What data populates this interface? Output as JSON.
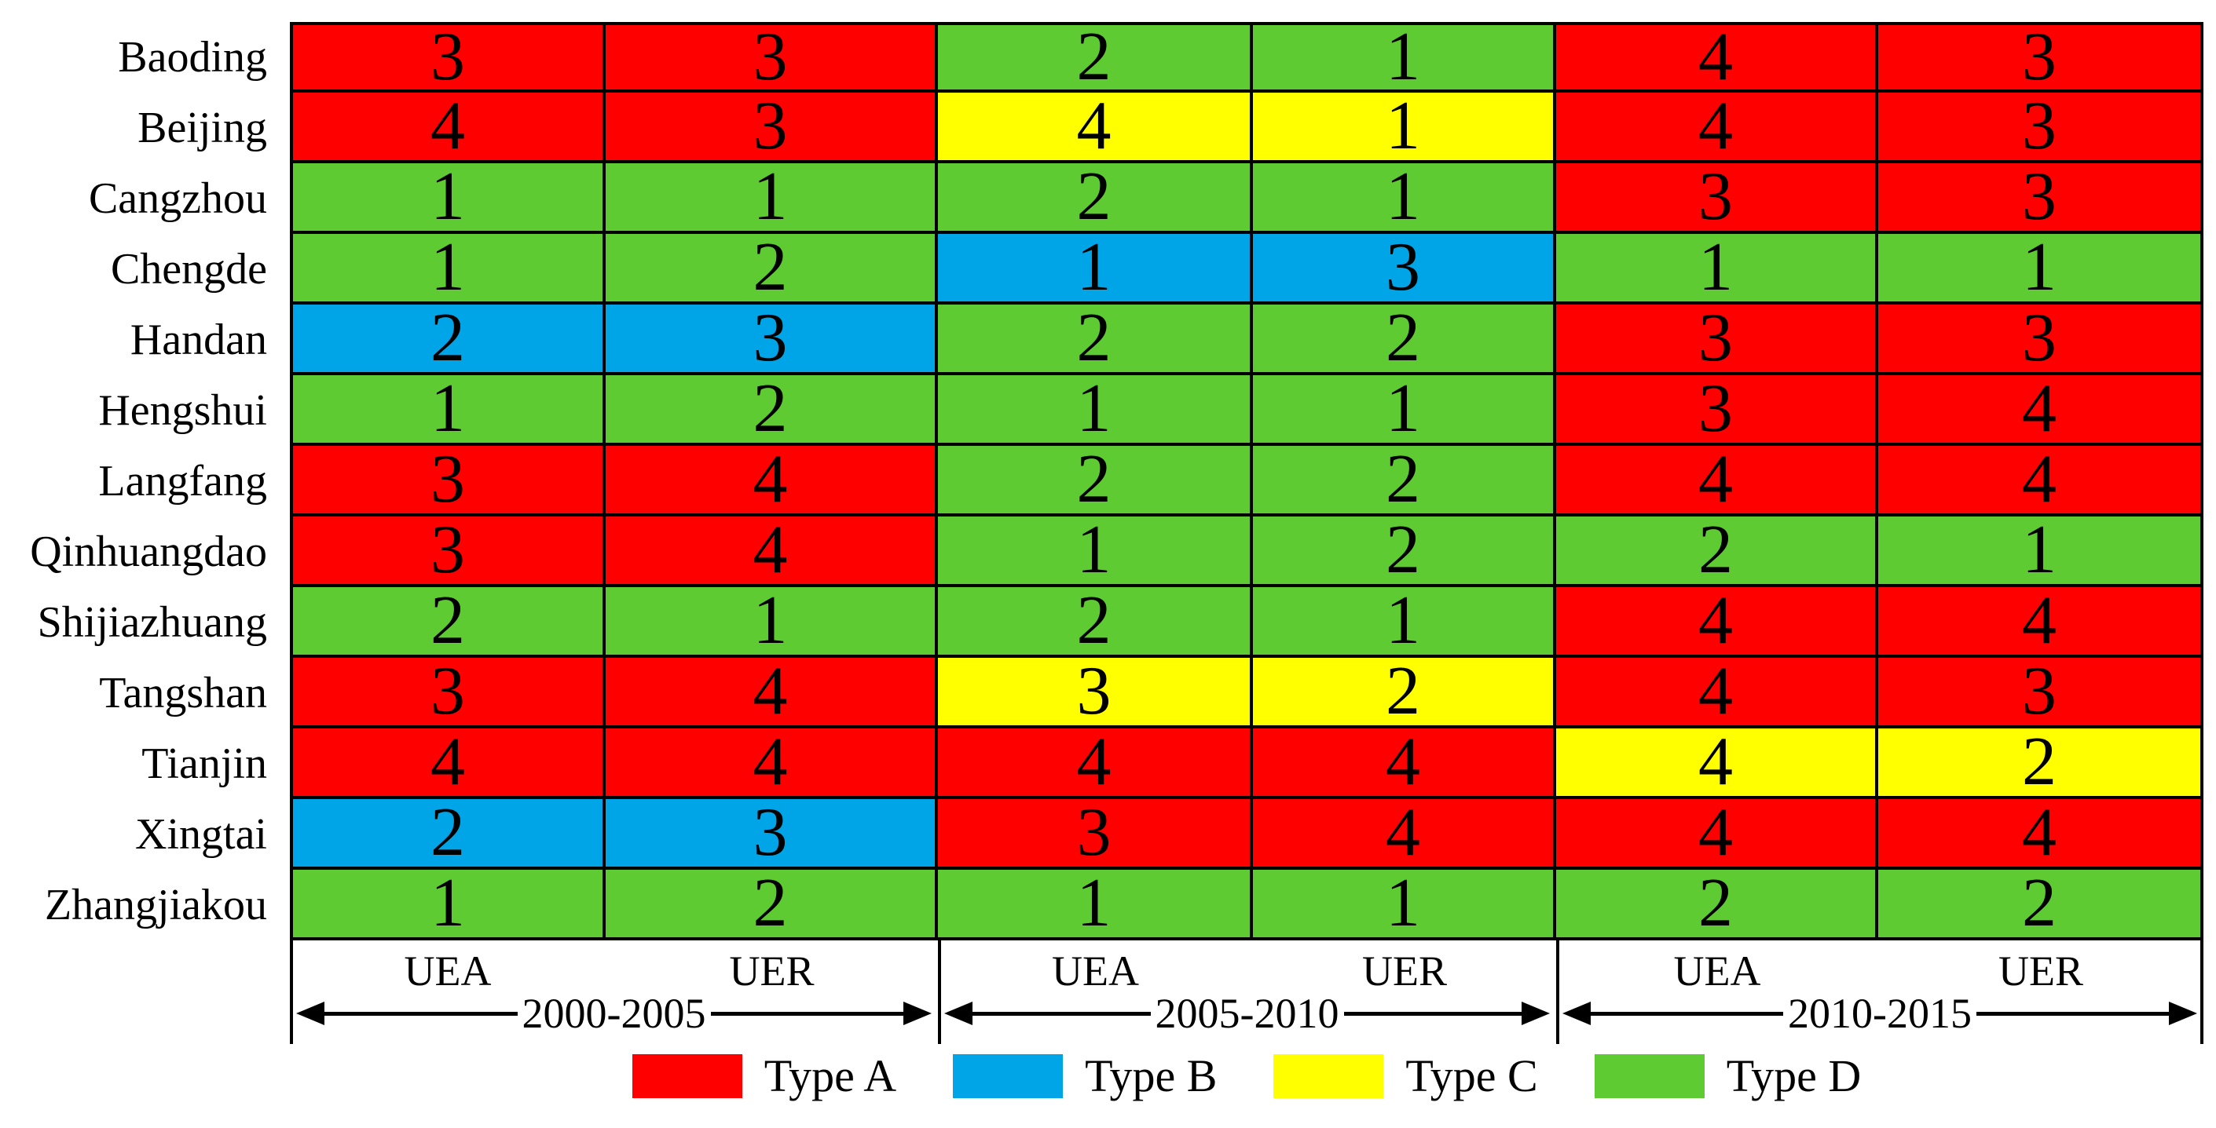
{
  "colors": {
    "A": "#FF0000",
    "B": "#00A5E8",
    "C": "#FFFF00",
    "D": "#5FCB33",
    "border": "#000000"
  },
  "table": {
    "row_labels": [
      "Baoding",
      "Beijing",
      "Cangzhou",
      "Chengde",
      "Handan",
      "Hengshui",
      "Langfang",
      "Qinhuangdao",
      "Shijiazhuang",
      "Tangshan",
      "Tianjin",
      "Xingtai",
      "Zhangjiakou"
    ],
    "column_groups": [
      {
        "period": "2000-2005",
        "columns": [
          "UEA",
          "UER"
        ]
      },
      {
        "period": "2005-2010",
        "columns": [
          "UEA",
          "UER"
        ]
      },
      {
        "period": "2010-2015",
        "columns": [
          "UEA",
          "UER"
        ]
      }
    ],
    "cells": [
      [
        {
          "value": "3",
          "type": "A"
        },
        {
          "value": "3",
          "type": "A"
        },
        {
          "value": "2",
          "type": "D"
        },
        {
          "value": "1",
          "type": "D"
        },
        {
          "value": "4",
          "type": "A"
        },
        {
          "value": "3",
          "type": "A"
        }
      ],
      [
        {
          "value": "4",
          "type": "A"
        },
        {
          "value": "3",
          "type": "A"
        },
        {
          "value": "4",
          "type": "C"
        },
        {
          "value": "1",
          "type": "C"
        },
        {
          "value": "4",
          "type": "A"
        },
        {
          "value": "3",
          "type": "A"
        }
      ],
      [
        {
          "value": "1",
          "type": "D"
        },
        {
          "value": "1",
          "type": "D"
        },
        {
          "value": "2",
          "type": "D"
        },
        {
          "value": "1",
          "type": "D"
        },
        {
          "value": "3",
          "type": "A"
        },
        {
          "value": "3",
          "type": "A"
        }
      ],
      [
        {
          "value": "1",
          "type": "D"
        },
        {
          "value": "2",
          "type": "D"
        },
        {
          "value": "1",
          "type": "B"
        },
        {
          "value": "3",
          "type": "B"
        },
        {
          "value": "1",
          "type": "D"
        },
        {
          "value": "1",
          "type": "D"
        }
      ],
      [
        {
          "value": "2",
          "type": "B"
        },
        {
          "value": "3",
          "type": "B"
        },
        {
          "value": "2",
          "type": "D"
        },
        {
          "value": "2",
          "type": "D"
        },
        {
          "value": "3",
          "type": "A"
        },
        {
          "value": "3",
          "type": "A"
        }
      ],
      [
        {
          "value": "1",
          "type": "D"
        },
        {
          "value": "2",
          "type": "D"
        },
        {
          "value": "1",
          "type": "D"
        },
        {
          "value": "1",
          "type": "D"
        },
        {
          "value": "3",
          "type": "A"
        },
        {
          "value": "4",
          "type": "A"
        }
      ],
      [
        {
          "value": "3",
          "type": "A"
        },
        {
          "value": "4",
          "type": "A"
        },
        {
          "value": "2",
          "type": "D"
        },
        {
          "value": "2",
          "type": "D"
        },
        {
          "value": "4",
          "type": "A"
        },
        {
          "value": "4",
          "type": "A"
        }
      ],
      [
        {
          "value": "3",
          "type": "A"
        },
        {
          "value": "4",
          "type": "A"
        },
        {
          "value": "1",
          "type": "D"
        },
        {
          "value": "2",
          "type": "D"
        },
        {
          "value": "2",
          "type": "D"
        },
        {
          "value": "1",
          "type": "D"
        }
      ],
      [
        {
          "value": "2",
          "type": "D"
        },
        {
          "value": "1",
          "type": "D"
        },
        {
          "value": "2",
          "type": "D"
        },
        {
          "value": "1",
          "type": "D"
        },
        {
          "value": "4",
          "type": "A"
        },
        {
          "value": "4",
          "type": "A"
        }
      ],
      [
        {
          "value": "3",
          "type": "A"
        },
        {
          "value": "4",
          "type": "A"
        },
        {
          "value": "3",
          "type": "C"
        },
        {
          "value": "2",
          "type": "C"
        },
        {
          "value": "4",
          "type": "A"
        },
        {
          "value": "3",
          "type": "A"
        }
      ],
      [
        {
          "value": "4",
          "type": "A"
        },
        {
          "value": "4",
          "type": "A"
        },
        {
          "value": "4",
          "type": "A"
        },
        {
          "value": "4",
          "type": "A"
        },
        {
          "value": "4",
          "type": "C"
        },
        {
          "value": "2",
          "type": "C"
        }
      ],
      [
        {
          "value": "2",
          "type": "B"
        },
        {
          "value": "3",
          "type": "B"
        },
        {
          "value": "3",
          "type": "A"
        },
        {
          "value": "4",
          "type": "A"
        },
        {
          "value": "4",
          "type": "A"
        },
        {
          "value": "4",
          "type": "A"
        }
      ],
      [
        {
          "value": "1",
          "type": "D"
        },
        {
          "value": "2",
          "type": "D"
        },
        {
          "value": "1",
          "type": "D"
        },
        {
          "value": "1",
          "type": "D"
        },
        {
          "value": "2",
          "type": "D"
        },
        {
          "value": "2",
          "type": "D"
        }
      ]
    ]
  },
  "legend": {
    "items": [
      {
        "label": "Type A",
        "type": "A"
      },
      {
        "label": "Type B",
        "type": "B"
      },
      {
        "label": "Type C",
        "type": "C"
      },
      {
        "label": "Type D",
        "type": "D"
      }
    ]
  },
  "chart_data": {
    "type": "heatmap",
    "title": "",
    "rows": [
      "Baoding",
      "Beijing",
      "Cangzhou",
      "Chengde",
      "Handan",
      "Hengshui",
      "Langfang",
      "Qinhuangdao",
      "Shijiazhuang",
      "Tangshan",
      "Tianjin",
      "Xingtai",
      "Zhangjiakou"
    ],
    "columns": [
      "UEA 2000-2005",
      "UER 2000-2005",
      "UEA 2005-2010",
      "UER 2005-2010",
      "UEA 2010-2015",
      "UER 2010-2015"
    ],
    "column_groups": [
      "2000-2005",
      "2005-2010",
      "2010-2015"
    ],
    "values": [
      [
        3,
        3,
        2,
        1,
        4,
        3
      ],
      [
        4,
        3,
        4,
        1,
        4,
        3
      ],
      [
        1,
        1,
        2,
        1,
        3,
        3
      ],
      [
        1,
        2,
        1,
        3,
        1,
        1
      ],
      [
        2,
        3,
        2,
        2,
        3,
        3
      ],
      [
        1,
        2,
        1,
        1,
        3,
        4
      ],
      [
        3,
        4,
        2,
        2,
        4,
        4
      ],
      [
        3,
        4,
        1,
        2,
        2,
        1
      ],
      [
        2,
        1,
        2,
        1,
        4,
        4
      ],
      [
        3,
        4,
        3,
        2,
        4,
        3
      ],
      [
        4,
        4,
        4,
        4,
        4,
        2
      ],
      [
        2,
        3,
        3,
        4,
        4,
        4
      ],
      [
        1,
        2,
        1,
        1,
        2,
        2
      ]
    ],
    "cell_types": [
      [
        "A",
        "A",
        "D",
        "D",
        "A",
        "A"
      ],
      [
        "A",
        "A",
        "C",
        "C",
        "A",
        "A"
      ],
      [
        "D",
        "D",
        "D",
        "D",
        "A",
        "A"
      ],
      [
        "D",
        "D",
        "B",
        "B",
        "D",
        "D"
      ],
      [
        "B",
        "B",
        "D",
        "D",
        "A",
        "A"
      ],
      [
        "D",
        "D",
        "D",
        "D",
        "A",
        "A"
      ],
      [
        "A",
        "A",
        "D",
        "D",
        "A",
        "A"
      ],
      [
        "A",
        "A",
        "D",
        "D",
        "D",
        "D"
      ],
      [
        "D",
        "D",
        "D",
        "D",
        "A",
        "A"
      ],
      [
        "A",
        "A",
        "C",
        "C",
        "A",
        "A"
      ],
      [
        "A",
        "A",
        "A",
        "A",
        "C",
        "C"
      ],
      [
        "B",
        "B",
        "A",
        "A",
        "A",
        "A"
      ],
      [
        "D",
        "D",
        "D",
        "D",
        "D",
        "D"
      ]
    ],
    "legend": [
      {
        "label": "Type A",
        "color": "#FF0000"
      },
      {
        "label": "Type B",
        "color": "#00A5E8"
      },
      {
        "label": "Type C",
        "color": "#FFFF00"
      },
      {
        "label": "Type D",
        "color": "#5FCB33"
      }
    ],
    "grid": true,
    "legend_position": "bottom"
  }
}
